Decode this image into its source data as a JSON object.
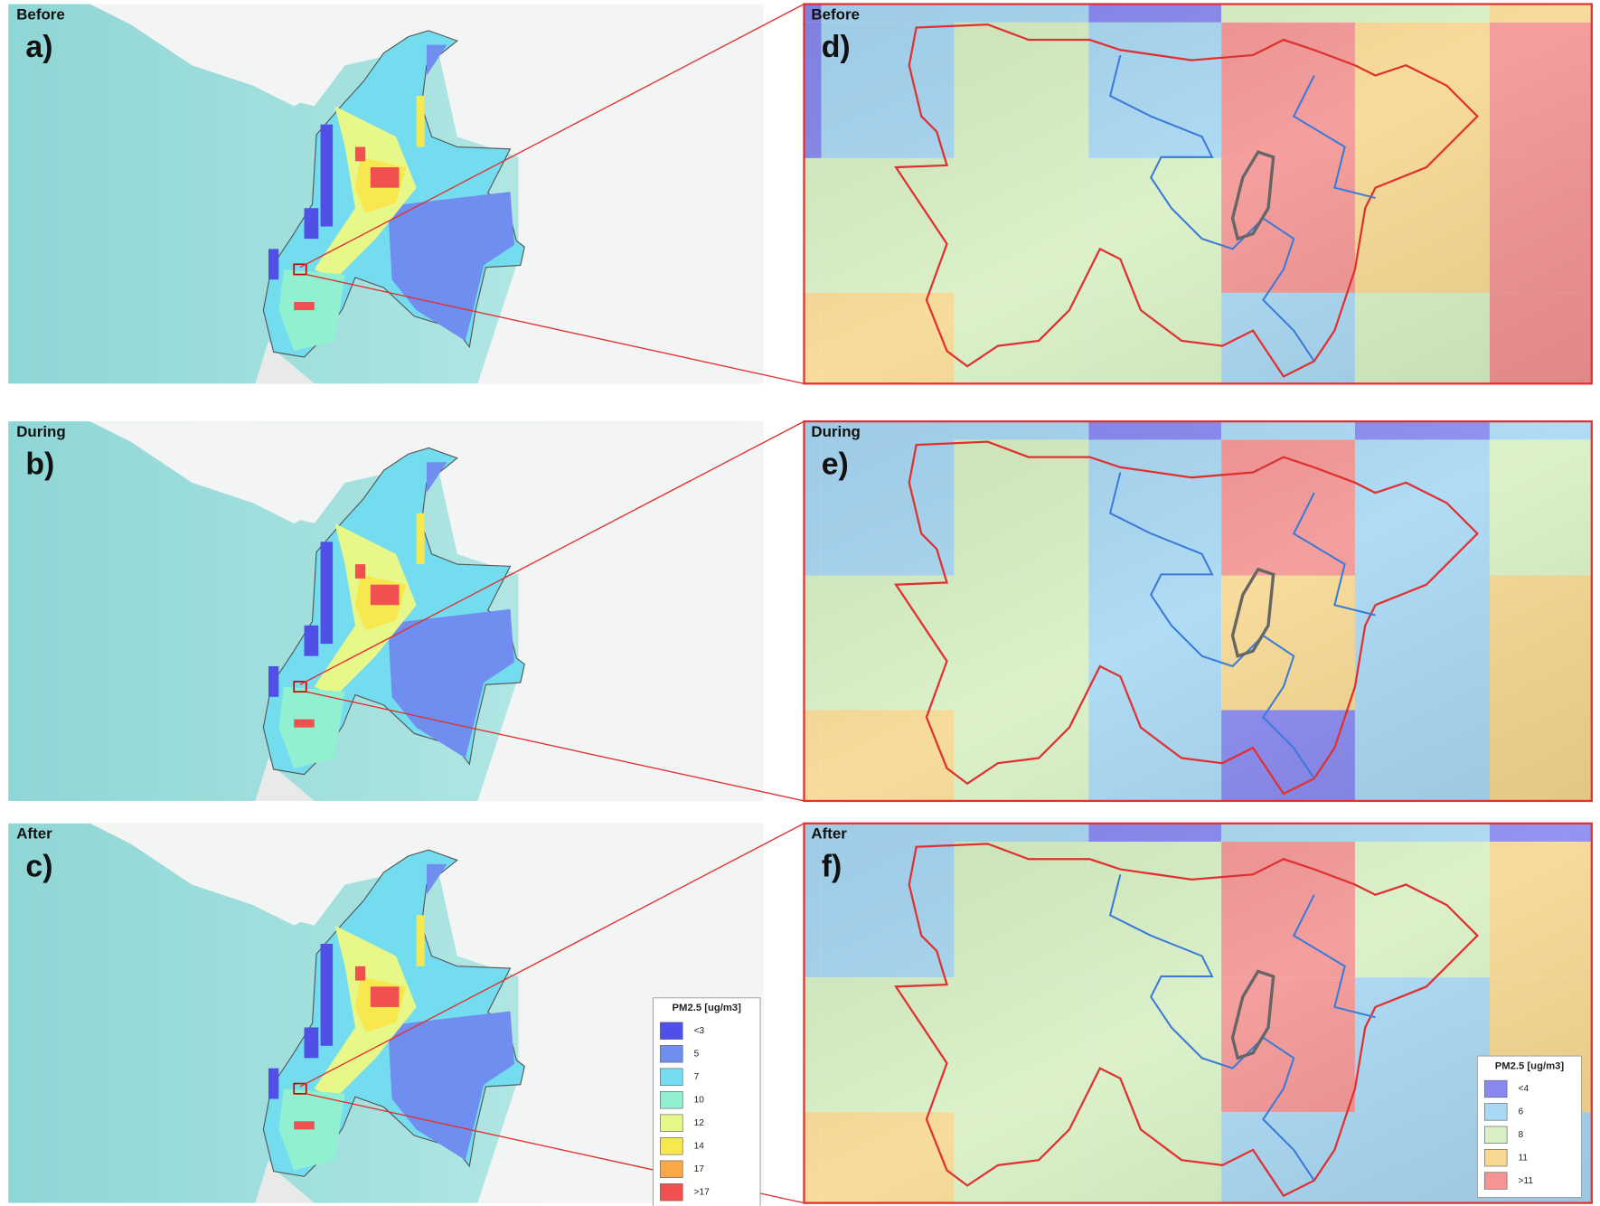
{
  "panels": [
    {
      "period": "Before",
      "label": "a)"
    },
    {
      "period": "During",
      "label": "b)"
    },
    {
      "period": "After",
      "label": "c)"
    }
  ],
  "zoom_panels": [
    {
      "period": "Before",
      "label": "d)"
    },
    {
      "period": "During",
      "label": "e)"
    },
    {
      "period": "After",
      "label": "f)"
    }
  ],
  "legend_national": {
    "title": "PM2.5 [ug/m3]",
    "items": [
      "<3",
      "5",
      "7",
      "10",
      "12",
      "14",
      "17",
      ">17"
    ]
  },
  "legend_zoom": {
    "title": "PM2.5 [ug/m3]",
    "items": [
      "<4",
      "6",
      "8",
      "11",
      ">11"
    ]
  }
}
